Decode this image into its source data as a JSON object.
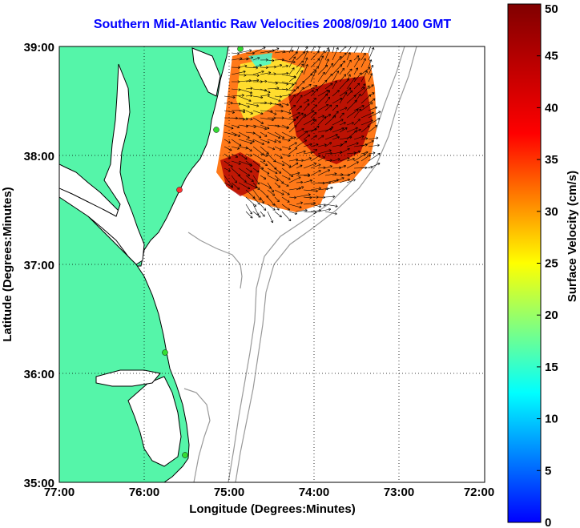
{
  "title": "Southern Mid-Atlantic Raw Velocities 2008/09/10 1400 GMT",
  "xlabel": "Longitude (Degrees:Minutes)",
  "ylabel": "Latitude (Degrees:Minutes)",
  "x_ticks": [
    "77:00",
    "76:00",
    "75:00",
    "74:00",
    "73:00",
    "72:00"
  ],
  "y_ticks": [
    "39:00",
    "38:00",
    "37:00",
    "36:00",
    "35:00"
  ],
  "colorbar": {
    "label": "Surface Velocity (cm/s)",
    "ticks": [
      "0",
      "5",
      "10",
      "15",
      "20",
      "25",
      "30",
      "35",
      "40",
      "45",
      "50"
    ],
    "min": 0,
    "max": 50
  },
  "colors": {
    "land": "#55f5a9",
    "water": "#ffffff",
    "coast": "#000000",
    "bathymetry": "#999999",
    "station": "#33dd33",
    "station_alt": "#ff3333",
    "title": "#0000ff"
  },
  "map_extent": {
    "lon": [
      -77,
      -72
    ],
    "lat": [
      35,
      39
    ]
  }
}
